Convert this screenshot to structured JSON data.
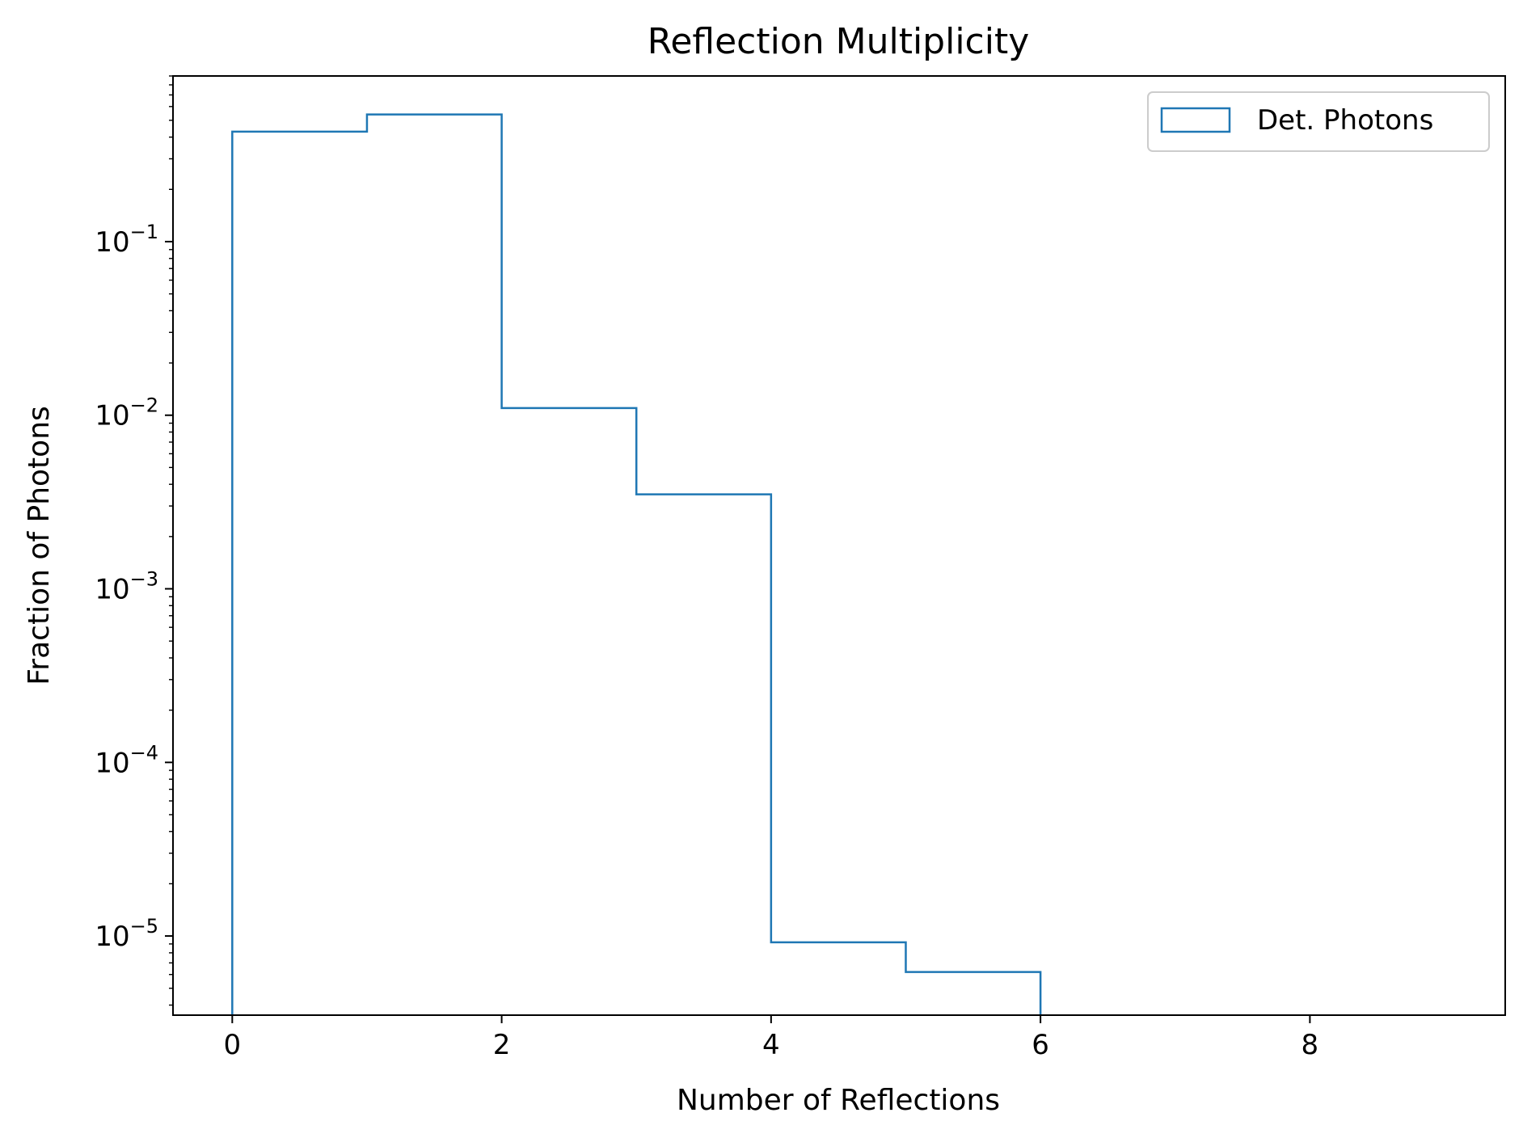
{
  "chart_data": {
    "type": "histogram",
    "title": "Reflection Multiplicity",
    "xlabel": "Number of Reflections",
    "ylabel": "Fraction of Photons",
    "xlim": [
      -0.44,
      9.45
    ],
    "ylim": [
      3.5e-06,
      0.9
    ],
    "yscale": "log",
    "xticks": [
      0,
      2,
      4,
      6,
      8
    ],
    "yticks": [
      {
        "value": 1e-05,
        "base": "10",
        "exp": "−5"
      },
      {
        "value": 0.0001,
        "base": "10",
        "exp": "−4"
      },
      {
        "value": 0.001,
        "base": "10",
        "exp": "−3"
      },
      {
        "value": 0.01,
        "base": "10",
        "exp": "−2"
      },
      {
        "value": 0.1,
        "base": "10",
        "exp": "−1"
      }
    ],
    "grid": false,
    "legend_position": "upper right",
    "series": [
      {
        "name": "Det. Photons",
        "color": "#1f77b4",
        "histtype": "step",
        "bin_edges": [
          0,
          1,
          2,
          3,
          4,
          5,
          6
        ],
        "values": [
          0.43,
          0.54,
          0.011,
          0.0035,
          9.2e-06,
          6.2e-06
        ]
      }
    ]
  }
}
